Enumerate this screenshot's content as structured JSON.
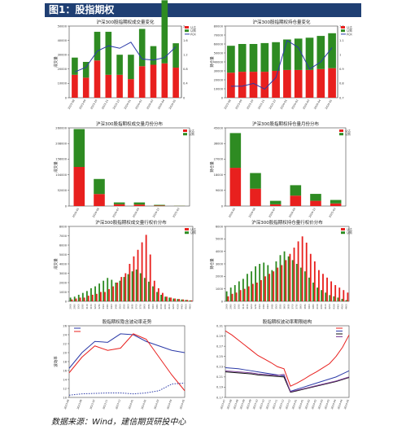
{
  "header": {
    "title": "图1：股指期权"
  },
  "source": "数据来源：Wind，建信期货研投中心",
  "colors": {
    "header_bg": "#1f3f73",
    "red": "#e8201e",
    "green": "#2e8b22",
    "blue": "#2b3aa8",
    "dark": "#111111",
    "purple": "#7f3f98"
  },
  "chart_data": [
    {
      "type": "bar",
      "title": "沪深300股指期权成交量变化",
      "ylabel": "成交量",
      "legend": [
        "认沽",
        "认购",
        "PCR"
      ],
      "legend_position": "top-right",
      "categories": [
        "2023-08",
        "2023-09",
        "2023-10",
        "2023-11",
        "2023-12",
        "2024-01",
        "2024-02",
        "2024-03",
        "2024-04",
        "2024-05"
      ],
      "series": [
        {
          "name": "认沽",
          "values": [
            16000,
            14000,
            26000,
            16000,
            16000,
            13000,
            22000,
            23000,
            24000,
            21000
          ]
        },
        {
          "name": "认购",
          "values": [
            12000,
            11000,
            20000,
            30000,
            14000,
            17000,
            26000,
            13000,
            44000,
            17000
          ]
        },
        {
          "name": "PCR",
          "axis": "right",
          "values": [
            0.72,
            0.85,
            1.3,
            1.45,
            1.38,
            1.55,
            1.08,
            1.05,
            1.12,
            1.42
          ]
        }
      ],
      "ylim": [
        0,
        50000
      ],
      "y2lim": [
        0,
        2.0
      ]
    },
    {
      "type": "bar",
      "title": "沪深300股指期权持仓量变化",
      "ylabel": "持仓量",
      "legend": [
        "认沽",
        "认购",
        "PCR"
      ],
      "legend_position": "top-right",
      "categories": [
        "2023-08",
        "2023-09",
        "2023-10",
        "2023-11",
        "2023-12",
        "2024-01",
        "2024-02",
        "2024-03",
        "2024-04",
        "2024-05"
      ],
      "series": [
        {
          "name": "认沽",
          "values": [
            28000,
            29000,
            29000,
            29000,
            30000,
            31000,
            31000,
            31000,
            32000,
            33000
          ]
        },
        {
          "name": "认购",
          "values": [
            30000,
            31000,
            31000,
            32000,
            32000,
            34000,
            35000,
            36000,
            37000,
            39000
          ]
        },
        {
          "name": "PCR",
          "axis": "right",
          "values": [
            0.78,
            0.78,
            0.8,
            0.76,
            0.84,
            1.1,
            1.05,
            0.9,
            0.95,
            1.05
          ]
        }
      ],
      "ylim": [
        0,
        80000
      ],
      "y2lim": [
        0.7,
        1.2
      ]
    },
    {
      "type": "bar",
      "title": "沪深300股指期权成交量月份分布",
      "ylabel": "成交量",
      "legend": [
        "认沽",
        "认购"
      ],
      "legend_position": "top-right",
      "categories": [
        "2024-05",
        "2024-06",
        "2024-07",
        "2024-09",
        "2024-12",
        "2025-03"
      ],
      "series": [
        {
          "name": "认沽",
          "values": [
            130000,
            40000,
            6000,
            5000,
            1500,
            400
          ]
        },
        {
          "name": "认购",
          "values": [
            126000,
            50000,
            6000,
            7000,
            2500,
            600
          ]
        }
      ],
      "ylim": [
        0,
        260000
      ]
    },
    {
      "type": "bar",
      "title": "沪深300股指期权持仓量月份分布",
      "ylabel": "持仓量",
      "legend": [
        "认沽",
        "认购"
      ],
      "legend_position": "top-right",
      "categories": [
        "2024-05",
        "2024-06",
        "2024-07",
        "2024-09",
        "2024-12",
        "2025-03"
      ],
      "series": [
        {
          "name": "认沽",
          "values": [
            22000,
            10000,
            1000,
            6000,
            3000,
            1500
          ]
        },
        {
          "name": "认购",
          "values": [
            20000,
            9000,
            2000,
            6000,
            4000,
            2000
          ]
        }
      ],
      "ylim": [
        0,
        45000
      ]
    },
    {
      "type": "bar",
      "title": "沪深300股指期权成交量行权价分布",
      "ylabel": "成交量",
      "legend": [
        "认沽",
        "认购"
      ],
      "legend_position": "top-right",
      "categories": [
        "2900",
        "2950",
        "3000",
        "3050",
        "3100",
        "3150",
        "3200",
        "3250",
        "3300",
        "3350",
        "3400",
        "3450",
        "3500",
        "3550",
        "3600",
        "3650",
        "3700",
        "3750",
        "3800",
        "3850",
        "3900",
        "3950",
        "4000",
        "4050",
        "4100",
        "4200",
        "4300",
        "4400",
        "4500",
        "4600"
      ],
      "series": [
        {
          "name": "认沽",
          "values": [
            200,
            300,
            400,
            400,
            600,
            700,
            800,
            1000,
            1000,
            1300,
            1600,
            2000,
            2600,
            3000,
            4000,
            4800,
            5500,
            6300,
            7100,
            5000,
            2200,
            1400,
            900,
            500,
            400,
            300,
            250,
            200,
            150,
            100
          ]
        },
        {
          "name": "认购",
          "values": [
            400,
            500,
            700,
            900,
            1100,
            1400,
            1600,
            1900,
            2200,
            2500,
            2300,
            2000,
            2200,
            2600,
            2900,
            3200,
            3400,
            3000,
            2500,
            2100,
            1600,
            1000,
            700,
            500,
            400,
            300,
            250,
            200,
            150,
            100
          ]
        }
      ],
      "ylim": [
        0,
        8000
      ]
    },
    {
      "type": "bar",
      "title": "沪深300股指期权持仓量行权价分布",
      "ylabel": "持仓量",
      "legend": [
        "认沽",
        "认购"
      ],
      "legend_position": "top-right",
      "categories": [
        "2900",
        "2950",
        "3000",
        "3050",
        "3100",
        "3150",
        "3200",
        "3250",
        "3300",
        "3350",
        "3400",
        "3450",
        "3500",
        "3550",
        "3600",
        "3650",
        "3700",
        "3750",
        "3800",
        "3850",
        "3900",
        "3950",
        "4000",
        "4050",
        "4100",
        "4200",
        "4300",
        "4400",
        "4500",
        "4600"
      ],
      "series": [
        {
          "name": "认沽",
          "values": [
            400,
            600,
            700,
            900,
            1000,
            1200,
            1400,
            1500,
            1700,
            2000,
            2200,
            2400,
            2700,
            2900,
            3300,
            3800,
            4300,
            4800,
            5200,
            4700,
            3800,
            3200,
            2500,
            2200,
            1900,
            1600,
            1300,
            1100,
            900,
            700
          ]
        },
        {
          "name": "认购",
          "values": [
            800,
            1100,
            1300,
            1600,
            1800,
            2200,
            2400,
            2800,
            3000,
            3100,
            2900,
            2500,
            3200,
            3700,
            4000,
            3600,
            3300,
            3000,
            2700,
            2400,
            1900,
            1500,
            1100,
            900,
            700,
            500,
            400,
            300,
            200,
            100
          ]
        }
      ],
      "ylim": [
        0,
        6000
      ]
    },
    {
      "type": "line",
      "title": "股指期权隐含波动率走势",
      "ylabel": "波动率",
      "legend_position": "top-left",
      "categories": [
        "2023-08",
        "2023-09",
        "2023-10",
        "2023-11",
        "2023-12",
        "2024-01",
        "2024-02",
        "2024-03",
        "2024-04",
        "2024-05"
      ],
      "series": [
        {
          "values": [
            16.5,
            20.0,
            22.5,
            22.3,
            24.2,
            24.0,
            22.5,
            21.5,
            20.5,
            20.0
          ]
        },
        {
          "values": [
            15.5,
            19.0,
            21.5,
            20.5,
            21.0,
            24.2,
            23.0,
            19.0,
            15.0,
            11.5
          ]
        },
        {
          "style": "dashed",
          "values": [
            10.5,
            10.8,
            10.9,
            11.0,
            11.0,
            10.8,
            11.0,
            11.5,
            13.0,
            13.2
          ]
        }
      ],
      "ylim": [
        10,
        26
      ]
    },
    {
      "type": "line",
      "title": "股指期权波动率期限结构",
      "legend_position": "top-right",
      "x": [
        "2023-07",
        "2023-08",
        "2023-08",
        "2023-09",
        "2023-09",
        "2023-10",
        "2023-10",
        "2023-11",
        "2023-11",
        "2023-12",
        "2023-12",
        "2024-01",
        "2024-01",
        "2024-02",
        "2024-02",
        "2024-03",
        "2024-03",
        "2024-04",
        "2024-04",
        "2024-05"
      ],
      "series": [
        {
          "values": [
            0.3,
            0.292,
            0.282,
            0.272,
            0.262,
            0.252,
            0.245,
            0.238,
            0.23,
            0.226,
            0.192,
            0.198,
            0.205,
            0.213,
            0.22,
            0.228,
            0.236,
            0.25,
            0.268,
            0.292
          ]
        },
        {
          "values": [
            0.228,
            0.227,
            0.226,
            0.224,
            0.222,
            0.22,
            0.218,
            0.216,
            0.214,
            0.212,
            0.182,
            0.186,
            0.19,
            0.194,
            0.198,
            0.202,
            0.206,
            0.21,
            0.216,
            0.222
          ]
        },
        {
          "values": [
            0.22,
            0.219,
            0.218,
            0.217,
            0.216,
            0.214,
            0.213,
            0.212,
            0.211,
            0.21,
            0.18,
            0.183,
            0.186,
            0.189,
            0.192,
            0.195,
            0.198,
            0.201,
            0.205,
            0.209
          ]
        },
        {
          "values": [
            0.222,
            0.221,
            0.22,
            0.219,
            0.218,
            0.216,
            0.215,
            0.214,
            0.213,
            0.215,
            0.181,
            0.184,
            0.187,
            0.19,
            0.193,
            0.196,
            0.199,
            0.202,
            0.206,
            0.21
          ]
        }
      ],
      "ylim": [
        0.17,
        0.31
      ]
    }
  ]
}
